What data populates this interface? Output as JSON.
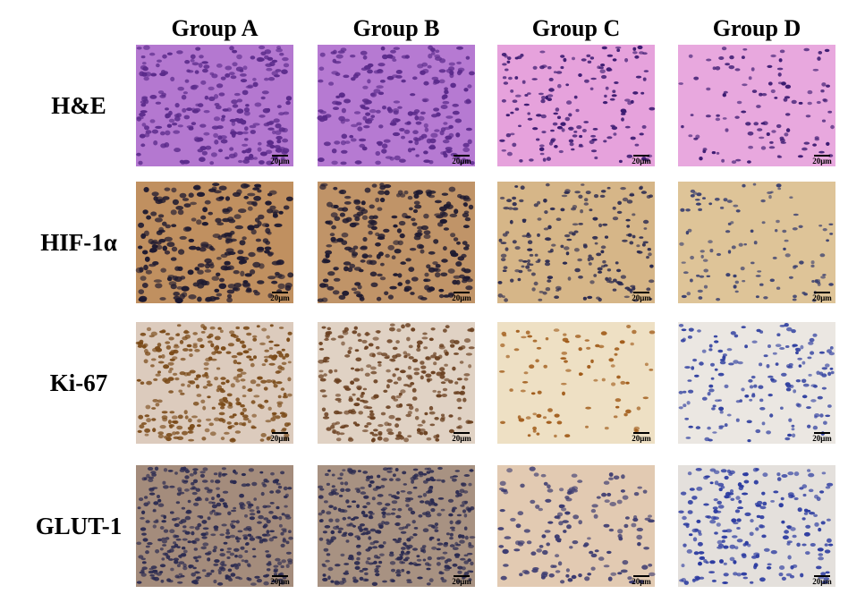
{
  "columns": [
    "Group A",
    "Group B",
    "Group C",
    "Group D"
  ],
  "rows": [
    {
      "label": "H&E",
      "scale_labels": [
        "20μm",
        "20μm",
        "20μm",
        "20μm"
      ]
    },
    {
      "label": "HIF-1α",
      "scale_labels": [
        "20μm",
        "20μm",
        "20μm",
        "20μm"
      ]
    },
    {
      "label": "Ki-67",
      "scale_labels": [
        "20μm",
        "20μm",
        "20μm",
        "20μm"
      ]
    },
    {
      "label": "GLUT-1",
      "scale_labels": [
        "20μm",
        "20μm",
        "20μm",
        "20μm"
      ]
    }
  ]
}
